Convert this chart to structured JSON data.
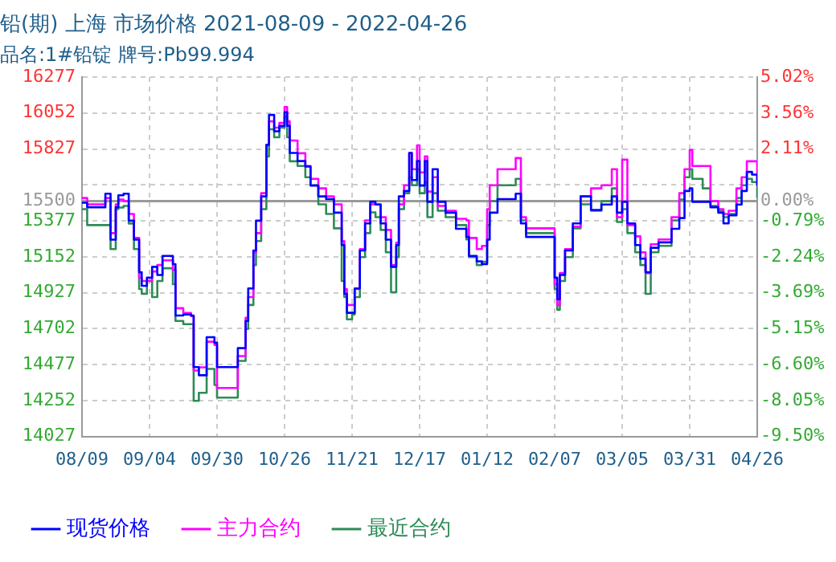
{
  "chart_data": {
    "type": "step",
    "title": "铅(期) 上海 市场价格 2021-08-09 - 2022-04-26",
    "subtitle": "品名:1#铅锭 牌号:Pb99.994",
    "x": [
      "2021-08-09",
      "2021-08-11",
      "2021-08-18",
      "2021-08-20",
      "2021-08-22",
      "2021-08-23",
      "2021-08-25",
      "2021-08-27",
      "2021-08-29",
      "2021-08-31",
      "2021-09-01",
      "2021-09-03",
      "2021-09-05",
      "2021-09-07",
      "2021-09-09",
      "2021-09-13",
      "2021-09-14",
      "2021-09-17",
      "2021-09-20",
      "2021-09-21",
      "2021-09-23",
      "2021-09-26",
      "2021-09-29",
      "2021-09-30",
      "2021-10-07",
      "2021-10-08",
      "2021-10-11",
      "2021-10-12",
      "2021-10-14",
      "2021-10-15",
      "2021-10-17",
      "2021-10-19",
      "2021-10-20",
      "2021-10-22",
      "2021-10-24",
      "2021-10-26",
      "2021-10-27",
      "2021-10-28",
      "2021-10-31",
      "2021-11-03",
      "2021-11-05",
      "2021-11-08",
      "2021-11-11",
      "2021-11-14",
      "2021-11-17",
      "2021-11-18",
      "2021-11-19",
      "2021-11-21",
      "2021-11-22",
      "2021-11-24",
      "2021-11-26",
      "2021-11-28",
      "2021-11-30",
      "2021-12-02",
      "2021-12-04",
      "2021-12-06",
      "2021-12-08",
      "2021-12-09",
      "2021-12-11",
      "2021-12-13",
      "2021-12-14",
      "2021-12-16",
      "2021-12-17",
      "2021-12-19",
      "2021-12-20",
      "2021-12-22",
      "2021-12-24",
      "2021-12-27",
      "2021-12-31",
      "2022-01-04",
      "2022-01-05",
      "2022-01-08",
      "2022-01-10",
      "2022-01-12",
      "2022-01-13",
      "2022-01-16",
      "2022-01-23",
      "2022-01-25",
      "2022-01-27",
      "2022-02-05",
      "2022-02-07",
      "2022-02-08",
      "2022-02-09",
      "2022-02-11",
      "2022-02-14",
      "2022-02-17",
      "2022-02-21",
      "2022-02-25",
      "2022-03-01",
      "2022-03-03",
      "2022-03-05",
      "2022-03-07",
      "2022-03-10",
      "2022-03-12",
      "2022-03-14",
      "2022-03-16",
      "2022-03-19",
      "2022-03-24",
      "2022-03-27",
      "2022-03-29",
      "2022-03-31",
      "2022-04-01",
      "2022-04-05",
      "2022-04-08",
      "2022-04-11",
      "2022-04-13",
      "2022-04-15",
      "2022-04-18",
      "2022-04-20",
      "2022-04-22",
      "2022-04-24",
      "2022-04-26"
    ],
    "series": [
      {
        "name": "现货价格",
        "color": "#0000ff",
        "values": [
          15490,
          15462,
          15547,
          15259,
          15462,
          15537,
          15547,
          15378,
          15259,
          15055,
          14970,
          15021,
          15089,
          15038,
          15157,
          15106,
          14784,
          14790,
          14784,
          14461,
          14410,
          14648,
          14614,
          14461,
          14461,
          14580,
          14750,
          14954,
          15191,
          15378,
          15530,
          15853,
          16040,
          15938,
          15972,
          16057,
          15972,
          15802,
          15751,
          15717,
          15598,
          15530,
          15513,
          15428,
          15225,
          14920,
          14801,
          14801,
          14954,
          15191,
          15361,
          15496,
          15479,
          15361,
          15259,
          15089,
          15225,
          15530,
          15564,
          15802,
          15632,
          15751,
          15598,
          15751,
          15496,
          15700,
          15496,
          15428,
          15327,
          15276,
          15157,
          15123,
          15106,
          15259,
          15428,
          15513,
          15547,
          15361,
          15276,
          15276,
          15021,
          14886,
          15038,
          15191,
          15361,
          15530,
          15445,
          15479,
          15530,
          15428,
          15496,
          15361,
          15225,
          15140,
          15055,
          15208,
          15242,
          15327,
          15394,
          15564,
          15581,
          15496,
          15496,
          15462,
          15428,
          15361,
          15411,
          15479,
          15564,
          15683,
          15666,
          15598
        ]
      },
      {
        "name": "主力合约",
        "color": "#ff00ff",
        "values": [
          15520,
          15480,
          15520,
          15300,
          15480,
          15510,
          15500,
          15420,
          15270,
          15020,
          15000,
          15000,
          15060,
          15100,
          15130,
          15070,
          14830,
          14800,
          14780,
          14440,
          14460,
          14620,
          14600,
          14330,
          14330,
          14530,
          14770,
          14900,
          15180,
          15300,
          15550,
          15850,
          16000,
          15960,
          15990,
          16090,
          16000,
          15880,
          15800,
          15720,
          15640,
          15580,
          15530,
          15480,
          15250,
          14950,
          14850,
          14850,
          14950,
          15200,
          15380,
          15480,
          15480,
          15400,
          15320,
          15100,
          15240,
          15480,
          15600,
          15800,
          15700,
          15850,
          15680,
          15780,
          15560,
          15650,
          15470,
          15440,
          15390,
          15380,
          15270,
          15200,
          15220,
          15450,
          15600,
          15700,
          15770,
          15400,
          15330,
          15330,
          14980,
          14850,
          15050,
          15200,
          15340,
          15530,
          15580,
          15600,
          15700,
          15400,
          15760,
          15350,
          15280,
          15180,
          15050,
          15230,
          15260,
          15400,
          15550,
          15700,
          15820,
          15720,
          15720,
          15500,
          15450,
          15420,
          15440,
          15580,
          15650,
          15750,
          15750,
          15600
        ]
      },
      {
        "name": "最近合约",
        "color": "#2e8b57",
        "values": [
          15450,
          15350,
          15350,
          15200,
          15450,
          15460,
          15470,
          15360,
          15200,
          14950,
          14920,
          15000,
          14900,
          15000,
          15080,
          14980,
          14750,
          14730,
          14730,
          14250,
          14300,
          14450,
          14350,
          14270,
          14270,
          14500,
          14700,
          14850,
          15100,
          15250,
          15450,
          15780,
          15950,
          15900,
          15960,
          16030,
          15900,
          15750,
          15720,
          15650,
          15600,
          15480,
          15420,
          15330,
          15000,
          14900,
          14760,
          14790,
          14900,
          15150,
          15300,
          15430,
          15400,
          15320,
          15180,
          14930,
          15150,
          15450,
          15550,
          15650,
          15600,
          15700,
          15550,
          15620,
          15400,
          15550,
          15440,
          15400,
          15350,
          15260,
          15150,
          15100,
          15120,
          15350,
          15500,
          15600,
          15640,
          15380,
          15300,
          15300,
          14950,
          14820,
          15000,
          15150,
          15330,
          15480,
          15440,
          15500,
          15580,
          15370,
          15450,
          15300,
          15180,
          15100,
          14920,
          15180,
          15220,
          15380,
          15510,
          15650,
          15700,
          15640,
          15580,
          15470,
          15440,
          15400,
          15420,
          15520,
          15600,
          15640,
          15620,
          15520
        ]
      }
    ],
    "xlim": [
      "2021-08-09",
      "2022-04-26"
    ],
    "xticks": [
      {
        "value": "2021-08-09",
        "label": "08/09"
      },
      {
        "value": "2021-09-04",
        "label": "09/04"
      },
      {
        "value": "2021-09-30",
        "label": "09/30"
      },
      {
        "value": "2021-10-26",
        "label": "10/26"
      },
      {
        "value": "2021-11-21",
        "label": "11/21"
      },
      {
        "value": "2021-12-17",
        "label": "12/17"
      },
      {
        "value": "2022-01-12",
        "label": "01/12"
      },
      {
        "value": "2022-02-07",
        "label": "02/07"
      },
      {
        "value": "2022-03-05",
        "label": "03/05"
      },
      {
        "value": "2022-03-31",
        "label": "03/31"
      },
      {
        "value": "2022-04-26",
        "label": "04/26"
      }
    ],
    "ylim": [
      14027,
      16277
    ],
    "yticks": [
      16277,
      16052,
      15827,
      {
        "value": 15602,
        "label": null
      },
      15500,
      15377,
      15152,
      14927,
      14702,
      14477,
      14252,
      14027
    ],
    "y2lim": [
      -9.5,
      5.02
    ],
    "y2ticks": [
      {
        "value": 5.02,
        "label": "5.02%"
      },
      {
        "value": 3.56,
        "label": "3.56%"
      },
      {
        "value": 2.11,
        "label": "2.11%"
      },
      {
        "value": 0.66,
        "label": null
      },
      {
        "value": 0,
        "label": "0.00%"
      },
      {
        "value": -0.79,
        "label": "-0.79%"
      },
      {
        "value": -2.24,
        "label": "-2.24%"
      },
      {
        "value": -3.69,
        "label": "-3.69%"
      },
      {
        "value": -5.15,
        "label": "-5.15%"
      },
      {
        "value": -6.6,
        "label": "-6.60%"
      },
      {
        "value": -8.05,
        "label": "-8.05%"
      },
      {
        "value": -9.5,
        "label": "-9.50%"
      }
    ],
    "ref_lines": [
      {
        "axis": "y",
        "value": 15500,
        "color": "#999999"
      }
    ],
    "grid": true,
    "legend": "bottom left",
    "marker": "none"
  }
}
